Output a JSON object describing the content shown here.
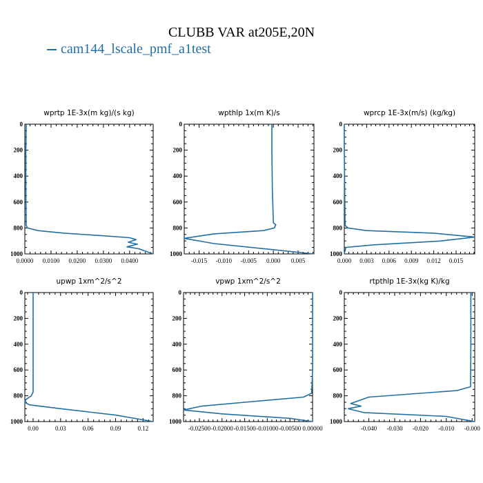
{
  "figure": {
    "title": "CLUBB VAR at205E,20N",
    "legend": [
      {
        "label": "cam144_lscale_pmf_a1test",
        "color": "#1f6fa3"
      }
    ]
  },
  "chart_data": [
    {
      "type": "line",
      "title": "wprtp  1E-3x(m kg)/(s kg)",
      "xlim": [
        0.0,
        0.049
      ],
      "ylim": [
        0,
        1000
      ],
      "y_inverted": true,
      "xticks": [
        0.0,
        0.01,
        0.02,
        0.03,
        0.04
      ],
      "xtick_labels": [
        "0.0000",
        "0.0100",
        "0.0200",
        "0.0300",
        "0.0400"
      ],
      "yticks": [
        0,
        200,
        400,
        600,
        800,
        1000
      ],
      "ytick_labels": [
        "0",
        "200",
        "400",
        "600",
        "800",
        "1000"
      ],
      "series": [
        {
          "name": "cam144_lscale_pmf_a1test",
          "x": [
            0.0005,
            0.0004,
            0.0004,
            0.0005,
            0.001,
            0.005,
            0.015,
            0.03,
            0.04,
            0.0425,
            0.0395,
            0.043,
            0.039,
            0.0435,
            0.049
          ],
          "y": [
            0,
            200,
            500,
            780,
            800,
            820,
            840,
            860,
            875,
            890,
            910,
            925,
            945,
            960,
            1000
          ]
        }
      ]
    },
    {
      "type": "line",
      "title": "wpthlp  1x(m K)/s",
      "xlim": [
        -0.018,
        0.0082
      ],
      "ylim": [
        0,
        1000
      ],
      "y_inverted": true,
      "xticks": [
        -0.015,
        -0.01,
        -0.005,
        0.0,
        0.005
      ],
      "xtick_labels": [
        "-0.015",
        "-0.010",
        "-0.005",
        "0.000",
        "0.005"
      ],
      "yticks": [
        0,
        200,
        400,
        600,
        800,
        1000
      ],
      "ytick_labels": [
        "0",
        "200",
        "400",
        "600",
        "800",
        "1000"
      ],
      "series": [
        {
          "name": "cam144_lscale_pmf_a1test",
          "x": [
            -0.0003,
            -0.0003,
            -0.0002,
            0.0,
            0.0005,
            0.0002,
            -0.002,
            -0.012,
            -0.018,
            -0.012,
            0.0082
          ],
          "y": [
            0,
            200,
            500,
            760,
            775,
            800,
            820,
            845,
            880,
            920,
            1000
          ]
        }
      ]
    },
    {
      "type": "line",
      "title": "wprcp  1E-3x(m/s) (kg/kg)",
      "xlim": [
        0.0,
        0.0175
      ],
      "ylim": [
        0,
        1000
      ],
      "y_inverted": true,
      "xticks": [
        0.0,
        0.003,
        0.006,
        0.009,
        0.012,
        0.015
      ],
      "xtick_labels": [
        "0.000",
        "0.003",
        "0.006",
        "0.009",
        "0.012",
        "0.015"
      ],
      "yticks": [
        0,
        200,
        400,
        600,
        800,
        1000
      ],
      "ytick_labels": [
        "0",
        "200",
        "400",
        "600",
        "800",
        "1000"
      ],
      "series": [
        {
          "name": "cam144_lscale_pmf_a1test",
          "x": [
            0.0,
            0.0,
            0.0001,
            0.0005,
            0.003,
            0.012,
            0.0175,
            0.013,
            0.004,
            0.0002,
            0.0
          ],
          "y": [
            0,
            200,
            780,
            800,
            820,
            840,
            870,
            900,
            930,
            950,
            1000
          ]
        }
      ]
    },
    {
      "type": "line",
      "title": "upwp  1xm^2/s^2",
      "xlim": [
        -0.009,
        0.131
      ],
      "ylim": [
        0,
        1000
      ],
      "y_inverted": true,
      "xticks": [
        0.0,
        0.03,
        0.06,
        0.09,
        0.12
      ],
      "xtick_labels": [
        "0.00",
        "0.03",
        "0.06",
        "0.09",
        "0.12"
      ],
      "yticks": [
        0,
        200,
        400,
        600,
        800,
        1000
      ],
      "ytick_labels": [
        "0",
        "200",
        "400",
        "600",
        "800",
        "1000"
      ],
      "series": [
        {
          "name": "cam144_lscale_pmf_a1test",
          "x": [
            0.0,
            0.0,
            0.0,
            -0.002,
            -0.008,
            -0.009,
            -0.004,
            0.03,
            0.09,
            0.131
          ],
          "y": [
            0,
            500,
            770,
            800,
            830,
            850,
            870,
            900,
            950,
            1000
          ]
        }
      ]
    },
    {
      "type": "line",
      "title": "vpwp  1xm^2/s^2",
      "xlim": [
        -0.0285,
        0.0
      ],
      "ylim": [
        0,
        1000
      ],
      "y_inverted": true,
      "xticks": [
        -0.025,
        -0.02,
        -0.015,
        -0.01,
        -0.005,
        0.0
      ],
      "xtick_labels": [
        "-0.02500",
        "-0.02000",
        "-0.01500",
        "-0.01000",
        "-0.00500",
        "0.00000"
      ],
      "yticks": [
        0,
        200,
        400,
        600,
        800,
        1000
      ],
      "ytick_labels": [
        "0",
        "200",
        "400",
        "600",
        "800",
        "1000"
      ],
      "series": [
        {
          "name": "cam144_lscale_pmf_a1test",
          "x": [
            0.0,
            0.0,
            -0.0002,
            -0.002,
            -0.015,
            -0.0245,
            -0.0285,
            -0.02,
            -0.005,
            0.0
          ],
          "y": [
            0,
            600,
            780,
            810,
            850,
            880,
            910,
            940,
            975,
            1000
          ]
        }
      ]
    },
    {
      "type": "line",
      "title": "rtpthlp  1E-3x(kg K)/kg",
      "xlim": [
        -0.0495,
        0.001
      ],
      "ylim": [
        0,
        1000
      ],
      "y_inverted": true,
      "xticks": [
        -0.04,
        -0.03,
        -0.02,
        -0.01,
        -0.0
      ],
      "xtick_labels": [
        "-0.040",
        "-0.030",
        "-0.020",
        "-0.010",
        "-0.000"
      ],
      "yticks": [
        0,
        200,
        400,
        600,
        800,
        1000
      ],
      "ytick_labels": [
        "0",
        "200",
        "400",
        "600",
        "800",
        "1000"
      ],
      "series": [
        {
          "name": "cam144_lscale_pmf_a1test",
          "x": [
            -0.0005,
            -0.0005,
            -0.0006,
            -0.006,
            -0.04,
            -0.047,
            -0.043,
            -0.048,
            -0.042,
            -0.01,
            0.001
          ],
          "y": [
            0,
            400,
            730,
            760,
            810,
            860,
            880,
            900,
            930,
            960,
            1000
          ]
        }
      ]
    }
  ]
}
